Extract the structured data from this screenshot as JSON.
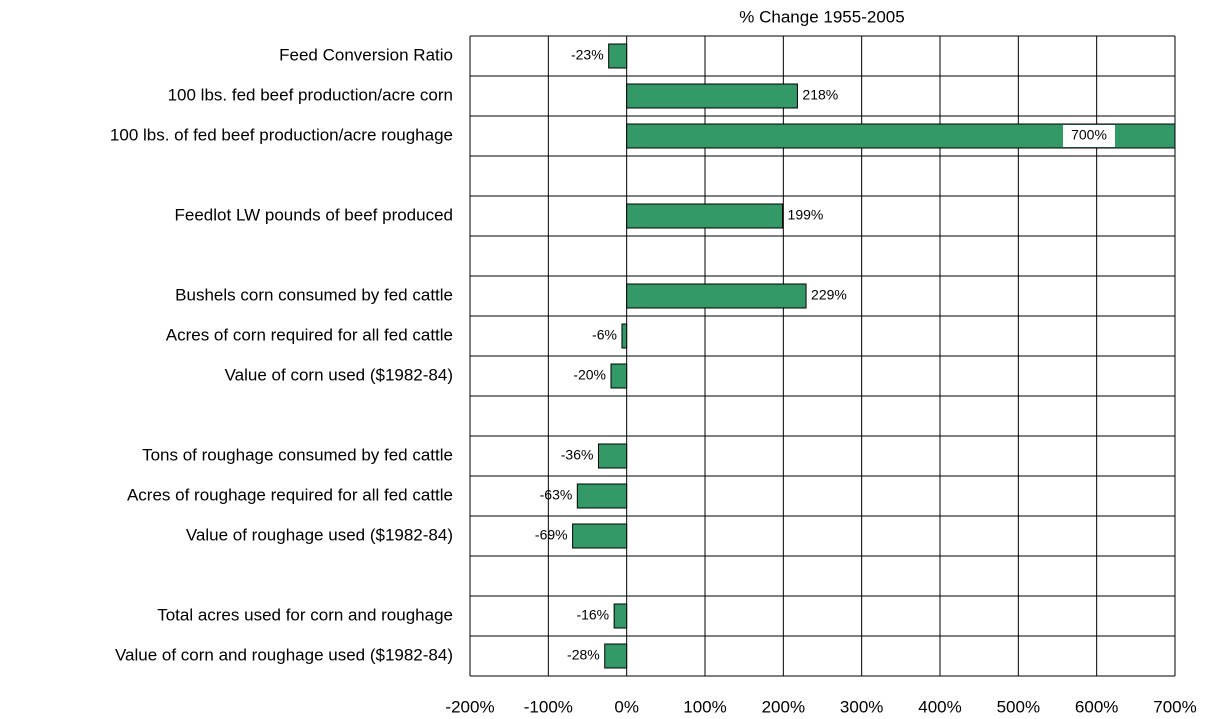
{
  "chart_data": {
    "type": "bar",
    "orientation": "horizontal",
    "title": "% Change 1955-2005",
    "categories": [
      "Feed Conversion Ratio",
      "100 lbs. fed beef production/acre corn",
      "100 lbs. of fed beef production/acre roughage",
      null,
      "Feedlot LW pounds of beef produced",
      null,
      "Bushels corn consumed by fed cattle",
      "Acres of corn required for all fed cattle",
      "Value of corn used ($1982-84)",
      null,
      "Tons of roughage consumed by fed cattle",
      "Acres of roughage required for all fed cattle",
      "Value of roughage used ($1982-84)",
      null,
      "Total acres used for corn and roughage",
      "Value of corn and roughage used ($1982-84)"
    ],
    "values": [
      -23,
      218,
      700,
      null,
      199,
      null,
      229,
      -6,
      -20,
      null,
      -36,
      -63,
      -69,
      null,
      -16,
      -28
    ],
    "value_labels": [
      "-23%",
      "218%",
      "700%",
      null,
      "199%",
      null,
      "229%",
      "-6%",
      "-20%",
      null,
      "-36%",
      "-63%",
      "-69%",
      null,
      "-16%",
      "-28%"
    ],
    "color": "#339966",
    "xlim": [
      -200,
      700
    ],
    "xticks": [
      {
        "value": -200,
        "label": "-200%"
      },
      {
        "value": -100,
        "label": "-100%"
      },
      {
        "value": 0,
        "label": "0%"
      },
      {
        "value": 100,
        "label": "100%"
      },
      {
        "value": 200,
        "label": "200%"
      },
      {
        "value": 300,
        "label": "300%"
      },
      {
        "value": 400,
        "label": "400%"
      },
      {
        "value": 500,
        "label": "500%"
      },
      {
        "value": 600,
        "label": "600%"
      },
      {
        "value": 700,
        "label": "700%"
      }
    ],
    "grid": true
  }
}
